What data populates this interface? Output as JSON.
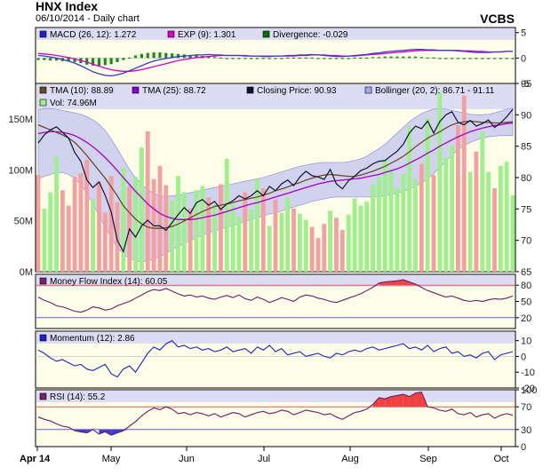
{
  "header": {
    "title": "HNX Index",
    "subtitle": "06/10/2014 - Daily chart",
    "source": "VCBS"
  },
  "colors": {
    "panel_bg": "#fdfde8",
    "band_fill": "#c9cbee",
    "price": "#10103a",
    "tma10": "#6b4a2a",
    "tma25": "#a400c8",
    "macd": "#3a3ac8",
    "exp": "#d400c8",
    "divergence": "#1a8c1a",
    "mfi": "#6a1e6a",
    "momentum": "#2020cc",
    "rsi": "#6a1e6a",
    "vol_up": "#9ef08a",
    "vol_down": "#f4a0a0",
    "overbought_fill": "#f04040",
    "oversold_fill": "#3a3ad0"
  },
  "legends": {
    "macd": [
      {
        "label": "MACD (26, 12): 1.272",
        "color": "#2020cc"
      },
      {
        "label": "EXP (9): 1.301",
        "color": "#e000c0"
      },
      {
        "label": "Divergence: -0.029",
        "color": "#007000"
      }
    ],
    "price": [
      {
        "label": "TMA (10): 88.89",
        "color": "#6b4a2a"
      },
      {
        "label": "TMA (25): 88.72",
        "color": "#8a00d0"
      },
      {
        "label": "Closing Price: 90.93",
        "color": "#101030"
      },
      {
        "label": "Bollinger (20, 2): 86.71 - 91.11",
        "color": "#a8aaf0"
      },
      {
        "label": "Vol: 74.96M",
        "color": "#9ef08a"
      }
    ],
    "mfi": {
      "label": "Money Flow Index (14): 60.05",
      "color": "#7a2070"
    },
    "momentum": {
      "label": "Momentum (12): 2.86",
      "color": "#2020cc"
    },
    "rsi": {
      "label": "RSI (14): 55.2",
      "color": "#7a2070"
    }
  },
  "chart_data": {
    "type": "line",
    "x_ticks": [
      "Apr 14",
      "May",
      "Jun",
      "Jul",
      "Aug",
      "Sep",
      "Oct"
    ],
    "price_axis": {
      "ticks": [
        "65",
        "70",
        "75",
        "80",
        "85",
        "90",
        "95"
      ],
      "ylim": [
        65,
        95
      ]
    },
    "volume_axis": {
      "ticks": [
        "0M",
        "50M",
        "100M",
        "150M"
      ],
      "ylim": [
        0,
        185
      ]
    },
    "macd_axis": {
      "ticks": [
        "5",
        "0",
        "-5"
      ],
      "ylim": [
        -5,
        6
      ]
    },
    "mfi_axis": {
      "ticks": [
        "80",
        "50",
        "20"
      ],
      "ylim": [
        0,
        100
      ],
      "levels": [
        80,
        20
      ]
    },
    "momentum_axis": {
      "ticks": [
        "10",
        "0",
        "-10",
        "-20"
      ],
      "ylim": [
        -20,
        16
      ]
    },
    "rsi_axis": {
      "ticks": [
        "100",
        "70",
        "30",
        "0"
      ],
      "ylim": [
        0,
        100
      ],
      "levels": [
        70,
        30
      ]
    },
    "closing_price": [
      85.5,
      86.8,
      87.6,
      88.1,
      87.2,
      86.3,
      84.0,
      82.6,
      79.6,
      78.4,
      79.3,
      77.2,
      74.5,
      70.0,
      68.2,
      71.8,
      70.5,
      72.3,
      73.2,
      72.3,
      72.3,
      71.6,
      72.8,
      74.1,
      75.2,
      74.3,
      76.0,
      76.5,
      75.6,
      76.2,
      74.9,
      75.8,
      76.3,
      77.1,
      76.6,
      77.1,
      77.9,
      77.1,
      78.6,
      77.9,
      79.0,
      79.6,
      78.7,
      80.1,
      81.0,
      80.3,
      80.1,
      79.7,
      81.3,
      79.0,
      78.2,
      79.5,
      80.2,
      81.1,
      81.5,
      82.2,
      82.6,
      82.7,
      83.5,
      84.2,
      85.3,
      87.1,
      88.2,
      87.8,
      89.0,
      87.1,
      88.9,
      90.0,
      90.5,
      88.8,
      88.4,
      89.1,
      88.2,
      88.6,
      89.2,
      88.0,
      88.7,
      89.7,
      90.9
    ],
    "tma10": [
      88.4,
      88.0,
      87.6,
      87.2,
      86.8,
      86.3,
      85.6,
      84.6,
      83.5,
      82.3,
      81.1,
      79.9,
      78.5,
      77.1,
      75.5,
      74.4,
      73.4,
      72.6,
      72.1,
      71.9,
      71.9,
      72.0,
      72.2,
      72.6,
      73.1,
      73.6,
      74.1,
      74.6,
      75.0,
      75.4,
      75.6,
      75.8,
      76.0,
      76.3,
      76.5,
      76.7,
      76.9,
      77.2,
      77.5,
      77.9,
      78.2,
      78.5,
      78.9,
      79.2,
      79.6,
      79.9,
      80.2,
      80.4,
      80.5,
      80.4,
      80.3,
      80.2,
      80.2,
      80.4,
      80.7,
      81.0,
      81.4,
      81.8,
      82.3,
      82.8,
      83.4,
      84.1,
      84.9,
      85.6,
      86.3,
      86.8,
      87.3,
      87.9,
      88.4,
      88.7,
      88.9,
      89.0,
      88.9,
      88.8,
      88.8,
      88.7,
      88.7,
      88.8,
      88.9
    ],
    "tma25": [
      87.0,
      87.2,
      87.3,
      87.3,
      87.2,
      87.0,
      86.7,
      86.2,
      85.6,
      84.9,
      84.1,
      83.2,
      82.2,
      81.1,
      80.0,
      78.9,
      77.8,
      76.8,
      75.8,
      75.0,
      74.3,
      73.8,
      73.5,
      73.3,
      73.3,
      73.3,
      73.4,
      73.6,
      73.8,
      74.0,
      74.3,
      74.6,
      74.9,
      75.2,
      75.5,
      75.8,
      76.0,
      76.3,
      76.6,
      76.9,
      77.2,
      77.5,
      77.8,
      78.1,
      78.4,
      78.7,
      79.0,
      79.2,
      79.4,
      79.5,
      79.6,
      79.7,
      79.8,
      79.9,
      80.1,
      80.3,
      80.5,
      80.8,
      81.1,
      81.4,
      81.8,
      82.3,
      82.8,
      83.3,
      83.9,
      84.4,
      85.0,
      85.5,
      86.0,
      86.5,
      86.9,
      87.3,
      87.6,
      87.9,
      88.1,
      88.3,
      88.4,
      88.6,
      88.7
    ],
    "bollinger_upper": [
      90.8,
      91.0,
      91.0,
      90.9,
      90.7,
      90.5,
      90.3,
      90.1,
      89.7,
      89.2,
      88.5,
      87.5,
      86.1,
      84.6,
      82.9,
      81.3,
      80.0,
      78.9,
      78.1,
      77.5,
      77.1,
      77.0,
      77.1,
      77.2,
      77.4,
      77.6,
      77.8,
      78.0,
      78.2,
      78.4,
      78.6,
      78.8,
      79.0,
      79.2,
      79.4,
      79.6,
      79.8,
      80.0,
      80.3,
      80.6,
      80.9,
      81.2,
      81.5,
      81.8,
      82.0,
      82.2,
      82.3,
      82.4,
      82.4,
      82.4,
      82.4,
      82.5,
      82.7,
      83.0,
      83.4,
      84.0,
      84.6,
      85.3,
      86.2,
      87.1,
      88.0,
      88.9,
      89.6,
      90.2,
      90.6,
      90.9,
      91.0,
      90.9,
      90.7,
      90.5,
      90.3,
      90.1,
      90.0,
      90.0,
      90.1,
      90.3,
      90.6,
      90.9,
      91.1
    ],
    "bollinger_lower": [
      79.8,
      80.2,
      80.5,
      80.8,
      80.8,
      80.5,
      79.9,
      78.9,
      77.5,
      75.8,
      73.9,
      72.1,
      70.4,
      68.9,
      67.8,
      67.1,
      66.7,
      66.6,
      66.7,
      67.0,
      67.4,
      67.9,
      68.5,
      69.0,
      69.5,
      70.0,
      70.4,
      70.8,
      71.2,
      71.5,
      71.8,
      72.1,
      72.4,
      72.7,
      73.0,
      73.3,
      73.6,
      73.9,
      74.2,
      74.4,
      74.7,
      75.0,
      75.3,
      75.6,
      75.9,
      76.2,
      76.4,
      76.6,
      76.8,
      76.9,
      76.9,
      76.9,
      76.9,
      76.9,
      76.9,
      76.9,
      77.0,
      77.1,
      77.3,
      77.5,
      77.8,
      78.2,
      78.6,
      79.1,
      79.8,
      80.6,
      81.6,
      82.6,
      83.6,
      84.4,
      85.1,
      85.6,
      86.0,
      86.3,
      86.5,
      86.6,
      86.7,
      86.7,
      86.7
    ],
    "volume": [
      95,
      62,
      78,
      113,
      80,
      65,
      93,
      97,
      110,
      71,
      88,
      58,
      94,
      68,
      102,
      84,
      93,
      122,
      138,
      91,
      104,
      85,
      70,
      94,
      78,
      62,
      80,
      84,
      73,
      66,
      86,
      111,
      66,
      54,
      78,
      61,
      91,
      82,
      45,
      71,
      58,
      73,
      62,
      57,
      51,
      44,
      33,
      47,
      60,
      53,
      41,
      56,
      72,
      65,
      69,
      85,
      93,
      110,
      99,
      82,
      96,
      143,
      91,
      106,
      151,
      95,
      176,
      112,
      124,
      144,
      173,
      98,
      118,
      138,
      98,
      82,
      104,
      108,
      75
    ],
    "volume_up": [
      0,
      1,
      1,
      1,
      0,
      0,
      0,
      0,
      0,
      1,
      0,
      0,
      0,
      0,
      1,
      0,
      1,
      1,
      0,
      0,
      0,
      0,
      1,
      1,
      1,
      0,
      1,
      1,
      0,
      1,
      0,
      1,
      1,
      1,
      0,
      1,
      1,
      0,
      1,
      0,
      1,
      1,
      0,
      1,
      1,
      0,
      0,
      0,
      1,
      0,
      0,
      1,
      1,
      1,
      1,
      1,
      1,
      1,
      1,
      1,
      1,
      1,
      1,
      0,
      1,
      0,
      1,
      1,
      1,
      0,
      0,
      1,
      0,
      1,
      1,
      0,
      1,
      1,
      1
    ],
    "macd": [
      0.5,
      0.4,
      0.2,
      0.0,
      -0.3,
      -0.6,
      -1.0,
      -1.5,
      -2.1,
      -2.7,
      -3.1,
      -3.4,
      -3.5,
      -3.3,
      -3.0,
      -2.5,
      -2.0,
      -1.5,
      -1.0,
      -0.6,
      -0.3,
      -0.1,
      0.1,
      0.3,
      0.4,
      0.5,
      0.6,
      0.6,
      0.7,
      0.6,
      0.6,
      0.5,
      0.5,
      0.5,
      0.4,
      0.4,
      0.4,
      0.3,
      0.3,
      0.4,
      0.4,
      0.5,
      0.5,
      0.6,
      0.6,
      0.7,
      0.6,
      0.5,
      0.4,
      0.3,
      0.3,
      0.4,
      0.5,
      0.6,
      0.7,
      0.9,
      1.0,
      1.2,
      1.3,
      1.4,
      1.5,
      1.6,
      1.7,
      1.7,
      1.6,
      1.6,
      1.5,
      1.5,
      1.5,
      1.4,
      1.3,
      1.2,
      1.1,
      1.1,
      1.1,
      1.2,
      1.2,
      1.3,
      1.3
    ],
    "exp9": [
      0.9,
      0.8,
      0.7,
      0.5,
      0.3,
      0.1,
      -0.2,
      -0.5,
      -0.8,
      -1.2,
      -1.6,
      -2.0,
      -2.3,
      -2.5,
      -2.6,
      -2.6,
      -2.5,
      -2.3,
      -2.0,
      -1.7,
      -1.4,
      -1.1,
      -0.8,
      -0.5,
      -0.3,
      -0.1,
      0.1,
      0.2,
      0.3,
      0.4,
      0.5,
      0.5,
      0.5,
      0.5,
      0.5,
      0.4,
      0.4,
      0.4,
      0.4,
      0.4,
      0.4,
      0.4,
      0.4,
      0.5,
      0.5,
      0.6,
      0.6,
      0.6,
      0.5,
      0.5,
      0.4,
      0.4,
      0.4,
      0.5,
      0.6,
      0.7,
      0.8,
      0.9,
      1.0,
      1.1,
      1.2,
      1.3,
      1.4,
      1.5,
      1.5,
      1.5,
      1.5,
      1.5,
      1.5,
      1.5,
      1.4,
      1.4,
      1.3,
      1.3,
      1.2,
      1.2,
      1.2,
      1.3,
      1.3
    ],
    "mfi": [
      58,
      52,
      48,
      42,
      40,
      36,
      32,
      30,
      34,
      40,
      38,
      34,
      36,
      42,
      46,
      50,
      56,
      62,
      68,
      72,
      70,
      74,
      69,
      64,
      60,
      62,
      58,
      60,
      56,
      54,
      58,
      61,
      57,
      62,
      55,
      52,
      58,
      54,
      48,
      52,
      57,
      54,
      50,
      58,
      62,
      60,
      56,
      54,
      50,
      48,
      52,
      56,
      60,
      64,
      70,
      76,
      84,
      86,
      87,
      88,
      90,
      86,
      82,
      76,
      70,
      66,
      62,
      58,
      60,
      56,
      52,
      50,
      52,
      50,
      53,
      55,
      54,
      56,
      60
    ],
    "momentum": [
      4,
      2,
      -1,
      -3,
      -2,
      -4,
      -6,
      -5,
      -8,
      -9,
      -7,
      -5,
      -11,
      -13,
      -8,
      -6,
      -10,
      -4,
      2,
      6,
      4,
      8,
      10,
      6,
      7,
      5,
      6,
      4,
      5,
      3,
      4,
      6,
      3,
      4,
      5,
      2,
      6,
      4,
      7,
      3,
      5,
      1,
      2,
      3,
      0,
      1,
      2,
      0,
      -1,
      2,
      1,
      3,
      4,
      3,
      5,
      6,
      4,
      5,
      6,
      7,
      8,
      5,
      6,
      4,
      7,
      3,
      5,
      6,
      2,
      3,
      0,
      1,
      -1,
      2,
      3,
      -2,
      1,
      2,
      3
    ],
    "rsi": [
      52,
      48,
      45,
      40,
      36,
      34,
      28,
      26,
      24,
      30,
      22,
      26,
      20,
      24,
      28,
      36,
      44,
      54,
      62,
      68,
      65,
      70,
      66,
      58,
      60,
      56,
      60,
      58,
      54,
      58,
      52,
      56,
      60,
      58,
      52,
      56,
      60,
      62,
      58,
      60,
      64,
      62,
      56,
      60,
      64,
      62,
      60,
      56,
      58,
      52,
      48,
      54,
      60,
      62,
      66,
      74,
      86,
      84,
      88,
      90,
      92,
      88,
      94,
      96,
      70,
      68,
      64,
      62,
      66,
      58,
      56,
      60,
      52,
      56,
      58,
      50,
      55,
      58,
      55
    ]
  }
}
